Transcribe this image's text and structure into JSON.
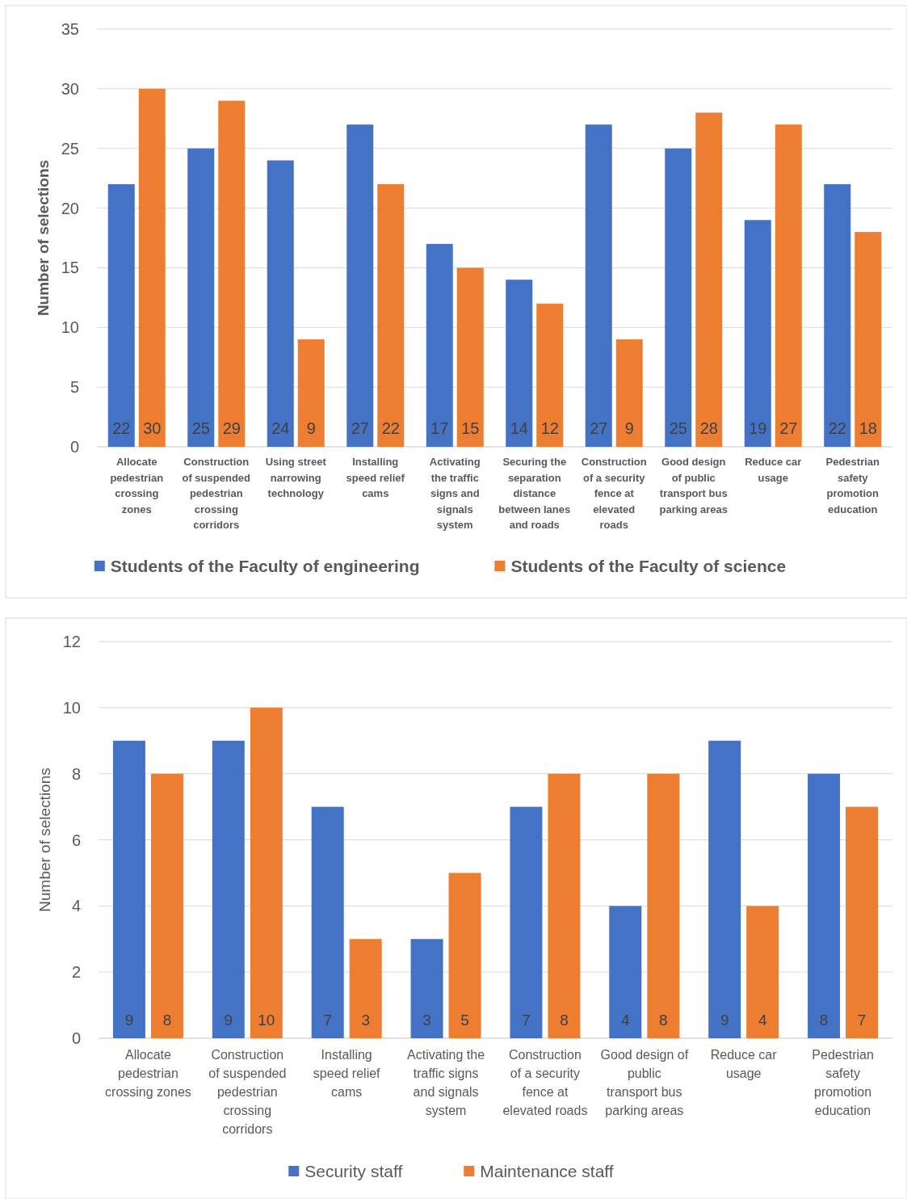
{
  "chart_data": [
    {
      "type": "bar",
      "ylabel": "Number of selections",
      "categories": [
        "Allocate pedestrian crossing zones",
        "Construction of suspended pedestrian crossing corridors",
        "Using street narrowing technology",
        "Installing speed relief cams",
        "Activating the traffic signs and signals system",
        "Securing the separation distance between lanes and roads",
        "Construction of a security fence at elevated roads",
        "Good design of public transport bus parking areas",
        "Reduce car usage",
        "Pedestrian safety promotion education"
      ],
      "series": [
        {
          "name": "Students of the Faculty of engineering",
          "color": "#4472c4",
          "values": [
            22,
            25,
            24,
            27,
            17,
            14,
            27,
            25,
            19,
            22
          ]
        },
        {
          "name": "Students of the Faculty of science",
          "color": "#ed7d31",
          "values": [
            30,
            29,
            9,
            22,
            15,
            12,
            9,
            28,
            27,
            18
          ]
        }
      ],
      "ylim": [
        0,
        35
      ],
      "yticks": [
        0,
        5,
        10,
        15,
        20,
        25,
        30,
        35
      ],
      "grid": "y",
      "legend": "bottom",
      "data_labels": true
    },
    {
      "type": "bar",
      "ylabel": "Number of selections",
      "categories": [
        "Allocate pedestrian crossing zones",
        "Construction of suspended pedestrian crossing corridors",
        "Installing speed relief cams",
        "Activating the traffic signs and signals system",
        "Construction of a security fence at elevated roads",
        "Good design of public transport bus parking areas",
        "Reduce car usage",
        "Pedestrian safety promotion education"
      ],
      "series": [
        {
          "name": "Security staff",
          "color": "#4472c4",
          "values": [
            9,
            9,
            7,
            3,
            7,
            4,
            9,
            8
          ]
        },
        {
          "name": "Maintenance staff",
          "color": "#ed7d31",
          "values": [
            8,
            10,
            3,
            5,
            8,
            8,
            4,
            7
          ]
        }
      ],
      "ylim": [
        0,
        12
      ],
      "yticks": [
        0,
        2,
        4,
        6,
        8,
        10,
        12
      ],
      "grid": "y",
      "legend": "bottom",
      "data_labels": true
    }
  ]
}
